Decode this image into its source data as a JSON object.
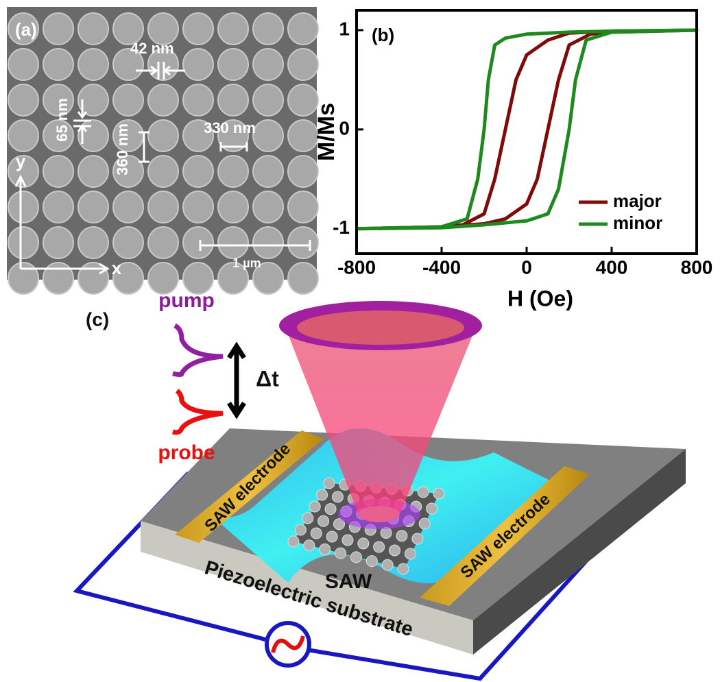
{
  "panel_a": {
    "label": "(a)",
    "annotations": [
      "42 nm",
      "65 nm",
      "360 nm",
      "330 nm",
      "1 µm"
    ],
    "axis_x": "x",
    "axis_y": "y"
  },
  "chart_data": {
    "type": "line",
    "panel_label": "(b)",
    "xlabel": "H (Oe)",
    "ylabel": "M/Ms",
    "xlim": [
      -800,
      800
    ],
    "ylim": [
      -1.25,
      1.2
    ],
    "xticks": [
      -800,
      -400,
      0,
      400,
      800
    ],
    "yticks": [
      -1,
      0,
      1
    ],
    "legend": "lower right",
    "series": [
      {
        "name": "major",
        "color": "#7f0a0a",
        "x": [
          -800,
          -400,
          -200,
          -100,
          0,
          50,
          100,
          150,
          200,
          300,
          400,
          800,
          400,
          200,
          100,
          0,
          -50,
          -100,
          -150,
          -200,
          -300,
          -400,
          -800
        ],
        "values": [
          -1,
          -0.98,
          -0.95,
          -0.9,
          -0.75,
          -0.5,
          0,
          0.5,
          0.85,
          0.96,
          0.98,
          1,
          0.99,
          0.97,
          0.9,
          0.75,
          0.5,
          0,
          -0.5,
          -0.85,
          -0.96,
          -0.98,
          -1
        ]
      },
      {
        "name": "minor",
        "color": "#1e8a1e",
        "x": [
          -800,
          -400,
          -200,
          0,
          100,
          150,
          200,
          230,
          280,
          400,
          800,
          400,
          200,
          0,
          -100,
          -150,
          -180,
          -200,
          -230,
          -280,
          -400,
          -800
        ],
        "values": [
          -1,
          -0.99,
          -0.96,
          -0.92,
          -0.85,
          -0.6,
          0,
          0.5,
          0.9,
          0.98,
          1,
          0.99,
          0.98,
          0.96,
          0.92,
          0.85,
          0.5,
          0,
          -0.5,
          -0.9,
          -0.98,
          -1
        ]
      }
    ]
  },
  "panel_c": {
    "label": "(c)",
    "pump": "pump",
    "probe": "probe",
    "delay": "Δt",
    "electrode_left": "SAW electrode",
    "electrode_right": "SAW electrode",
    "wave": "SAW",
    "substrate": "Piezoelectric substrate"
  }
}
